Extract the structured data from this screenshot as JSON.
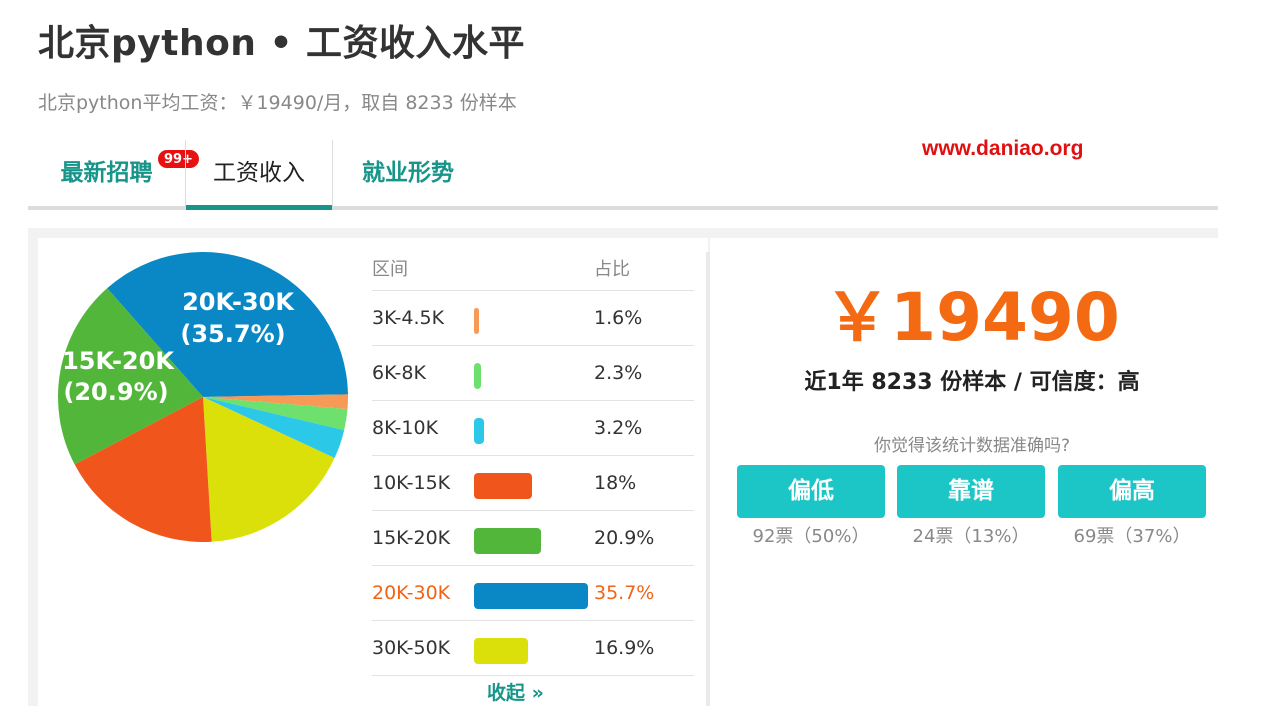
{
  "header": {
    "title": "北京python • 工资收入水平",
    "subtitle": "北京python平均工资：￥19490/月，取自 8233 份样本"
  },
  "watermark": "www.daniao.org",
  "tabs": [
    {
      "label": "最新招聘",
      "badge": "99+"
    },
    {
      "label": "工资收入"
    },
    {
      "label": "就业形势"
    }
  ],
  "colors": {
    "accent": "#17958a",
    "highlight": "#f06418",
    "vote_button": "#1cc6c6"
  },
  "table": {
    "header_range": "区间",
    "header_pct": "占比",
    "rows": [
      {
        "range": "3K-4.5K",
        "pct": "1.6%",
        "value": 1.6,
        "color": "#f79a58"
      },
      {
        "range": "6K-8K",
        "pct": "2.3%",
        "value": 2.3,
        "color": "#6ee06e"
      },
      {
        "range": "8K-10K",
        "pct": "3.2%",
        "value": 3.2,
        "color": "#2cc8e8"
      },
      {
        "range": "10K-15K",
        "pct": "18%",
        "value": 18,
        "color": "#f0561c"
      },
      {
        "range": "15K-20K",
        "pct": "20.9%",
        "value": 20.9,
        "color": "#52b63a"
      },
      {
        "range": "20K-30K",
        "pct": "35.7%",
        "value": 35.7,
        "color": "#0a88c6",
        "highlight": true
      },
      {
        "range": "30K-50K",
        "pct": "16.9%",
        "value": 16.9,
        "color": "#dce00a"
      }
    ],
    "collapse_label": "收起 »"
  },
  "pie_labels": {
    "slice_20_30_range": "20K-30K",
    "slice_20_30_pct": "(35.7%)",
    "slice_15_20_range": "15K-20K",
    "slice_15_20_pct": "(20.9%)"
  },
  "summary": {
    "avg_salary": "￥19490",
    "sample_info": "近1年 8233 份样本 / 可信度：高",
    "question": "你觉得该统计数据准确吗?"
  },
  "votes": [
    {
      "label": "偏低",
      "count": "92票（50%）"
    },
    {
      "label": "靠谱",
      "count": "24票（13%）"
    },
    {
      "label": "偏高",
      "count": "69票（37%）"
    }
  ]
}
